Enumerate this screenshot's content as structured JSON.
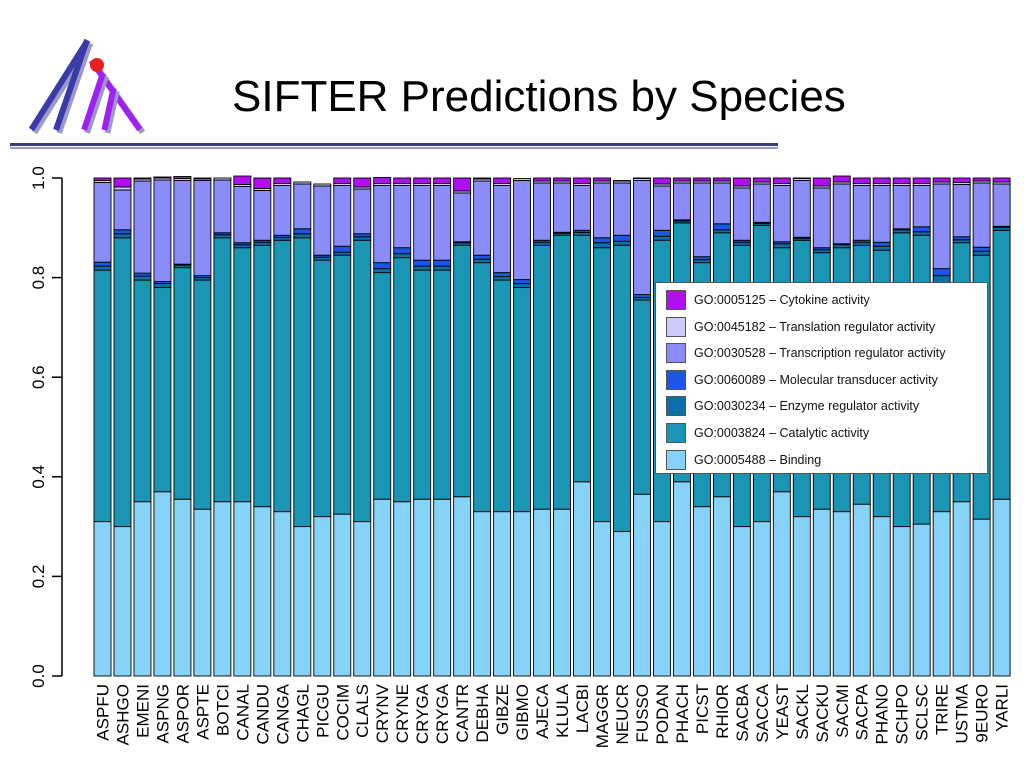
{
  "header": {
    "title": "SIFTER Predictions by Species"
  },
  "logo": {
    "icon": "stylized-tree-logo-icon",
    "colors": [
      "#3a3aa8",
      "#a020f0",
      "#e82020"
    ]
  },
  "colors": {
    "rule_dark": "#3a3a8c",
    "rule_light": "#9a9ac8"
  },
  "chart_data": {
    "type": "bar",
    "stacked": true,
    "ylim": [
      0,
      1
    ],
    "yticks": [
      "0.0",
      "0.2",
      "0.4",
      "0.6",
      "0.8",
      "1.0"
    ],
    "grid": false,
    "legend_position": "right-middle",
    "categories": [
      "ASPFU",
      "ASHGO",
      "EMENI",
      "ASPNG",
      "ASPOR",
      "ASPTE",
      "BOTCI",
      "CANAL",
      "CANDU",
      "CANGA",
      "CHAGL",
      "PICGU",
      "COCIM",
      "CLALS",
      "CRYNV",
      "CRYNE",
      "CRYGA",
      "CRYGA",
      "CANTR",
      "DEBHA",
      "GIBZE",
      "GIBMO",
      "AJECA",
      "KLULA",
      "LACBI",
      "MAGGR",
      "NEUCR",
      "FUSSO",
      "PODAN",
      "PHACH",
      "PICST",
      "RHIOR",
      "SACBA",
      "SACCA",
      "YEAST",
      "SACKL",
      "SACKU",
      "SACMI",
      "SACPA",
      "PHANO",
      "SCHPO",
      "SCLSC",
      "TRIRE",
      "USTMA",
      "9EURO",
      "YARLI"
    ],
    "series": [
      {
        "name": "GO:0005488 – Binding",
        "color": "#87d3f8",
        "values": [
          0.31,
          0.3,
          0.35,
          0.37,
          0.355,
          0.335,
          0.35,
          0.35,
          0.34,
          0.33,
          0.3,
          0.32,
          0.325,
          0.31,
          0.355,
          0.35,
          0.355,
          0.355,
          0.36,
          0.33,
          0.33,
          0.33,
          0.335,
          0.335,
          0.39,
          0.31,
          0.29,
          0.365,
          0.31,
          0.39,
          0.34,
          0.36,
          0.3,
          0.31,
          0.37,
          0.32,
          0.335,
          0.33,
          0.345,
          0.32,
          0.3,
          0.305,
          0.33,
          0.35,
          0.315,
          0.355
        ]
      },
      {
        "name": "GO:0003824 – Catalytic activity",
        "color": "#1a96b4",
        "values": [
          0.505,
          0.58,
          0.445,
          0.41,
          0.465,
          0.46,
          0.53,
          0.51,
          0.525,
          0.545,
          0.58,
          0.515,
          0.52,
          0.565,
          0.455,
          0.49,
          0.46,
          0.46,
          0.505,
          0.5,
          0.465,
          0.45,
          0.53,
          0.55,
          0.495,
          0.55,
          0.575,
          0.39,
          0.565,
          0.52,
          0.49,
          0.53,
          0.565,
          0.595,
          0.49,
          0.555,
          0.515,
          0.53,
          0.52,
          0.535,
          0.59,
          0.58,
          0.46,
          0.52,
          0.53,
          0.54
        ]
      },
      {
        "name": "GO:0030234 – Enzyme regulator activity",
        "color": "#0b6fa8",
        "values": [
          0.008,
          0.008,
          0.008,
          0.008,
          0.005,
          0.005,
          0.006,
          0.006,
          0.006,
          0.006,
          0.008,
          0.006,
          0.006,
          0.007,
          0.008,
          0.008,
          0.008,
          0.008,
          0.005,
          0.007,
          0.007,
          0.008,
          0.006,
          0.004,
          0.006,
          0.01,
          0.008,
          0.005,
          0.008,
          0.004,
          0.006,
          0.006,
          0.006,
          0.004,
          0.008,
          0.004,
          0.006,
          0.006,
          0.006,
          0.008,
          0.006,
          0.007,
          0.014,
          0.006,
          0.008,
          0.006
        ]
      },
      {
        "name": "GO:0060089 – Molecular transducer activity",
        "color": "#1a56e8",
        "values": [
          0.008,
          0.008,
          0.006,
          0.004,
          0.002,
          0.004,
          0.004,
          0.004,
          0.004,
          0.004,
          0.01,
          0.004,
          0.012,
          0.006,
          0.012,
          0.012,
          0.012,
          0.012,
          0.002,
          0.008,
          0.008,
          0.008,
          0.004,
          0.002,
          0.004,
          0.01,
          0.012,
          0.006,
          0.012,
          0.002,
          0.006,
          0.012,
          0.004,
          0.002,
          0.004,
          0.002,
          0.004,
          0.002,
          0.004,
          0.008,
          0.002,
          0.01,
          0.014,
          0.006,
          0.008,
          0.002
        ]
      },
      {
        "name": "GO:0030528 – Transcription regulator activity",
        "color": "#8a8cf8",
        "values": [
          0.16,
          0.08,
          0.185,
          0.204,
          0.168,
          0.191,
          0.106,
          0.113,
          0.1,
          0.1,
          0.09,
          0.139,
          0.122,
          0.09,
          0.155,
          0.125,
          0.15,
          0.15,
          0.098,
          0.149,
          0.175,
          0.199,
          0.115,
          0.099,
          0.09,
          0.11,
          0.105,
          0.229,
          0.089,
          0.074,
          0.148,
          0.082,
          0.105,
          0.077,
          0.113,
          0.114,
          0.12,
          0.12,
          0.11,
          0.114,
          0.087,
          0.083,
          0.17,
          0.105,
          0.129,
          0.085
        ]
      },
      {
        "name": "GO:0045182 – Translation regulator activity",
        "color": "#cccbf8",
        "values": [
          0.004,
          0.006,
          0.004,
          0.004,
          0.004,
          0.003,
          0.004,
          0.004,
          0.004,
          0.004,
          0.004,
          0.004,
          0.004,
          0.004,
          0.004,
          0.004,
          0.004,
          0.004,
          0.004,
          0.004,
          0.004,
          0.004,
          0.004,
          0.004,
          0.004,
          0.004,
          0.004,
          0.004,
          0.004,
          0.004,
          0.004,
          0.004,
          0.004,
          0.004,
          0.004,
          0.004,
          0.004,
          0.004,
          0.004,
          0.004,
          0.004,
          0.004,
          0.004,
          0.004,
          0.004,
          0.004
        ]
      },
      {
        "name": "GO:0005125 – Cytokine activity",
        "color": "#b010f0",
        "values": [
          0.005,
          0.018,
          0.002,
          0.002,
          0.004,
          0.002,
          0.0,
          0.017,
          0.021,
          0.011,
          0.0,
          0.0,
          0.011,
          0.018,
          0.012,
          0.011,
          0.011,
          0.011,
          0.026,
          0.002,
          0.011,
          0.0,
          0.006,
          0.006,
          0.011,
          0.006,
          0.001,
          0.001,
          0.012,
          0.006,
          0.006,
          0.006,
          0.016,
          0.008,
          0.011,
          0.001,
          0.016,
          0.012,
          0.011,
          0.011,
          0.011,
          0.011,
          0.008,
          0.009,
          0.006,
          0.008
        ]
      }
    ]
  }
}
